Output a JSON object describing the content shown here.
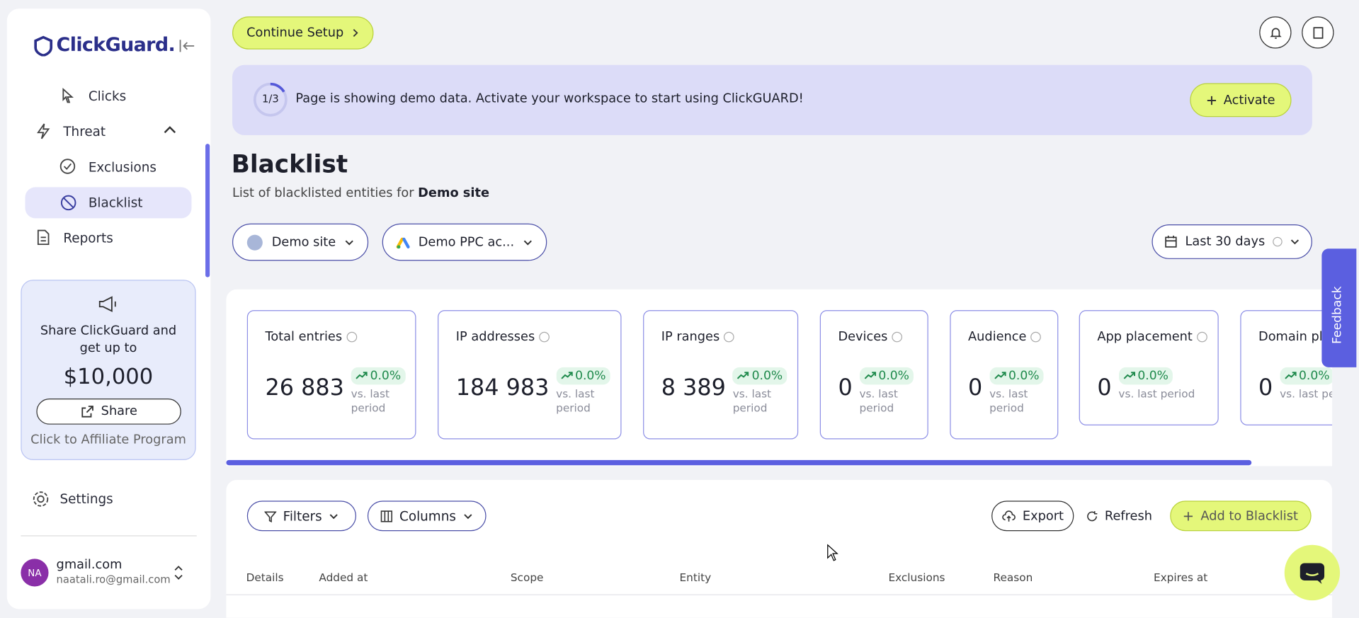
{
  "sidebar": {
    "brand": "ClickGuard.",
    "nav": [
      "Clicks",
      "Threat",
      "Exclusions",
      "Blacklist",
      "Reports"
    ],
    "promo": {
      "text": "Share ClickGuard and get up to",
      "amount": "$10,000",
      "button": "Share",
      "link": "Click to Affiliate Program"
    },
    "settings": "Settings",
    "user": {
      "initials": "NA",
      "name": "gmail.com",
      "email": "naatali.ro@gmail.com"
    }
  },
  "topbar": {
    "button": "Continue Setup"
  },
  "banner": {
    "progress": "1/3",
    "text": "Page is showing demo data. Activate your workspace to start using ClickGUARD!",
    "button": "Activate"
  },
  "page": {
    "title": "Blacklist",
    "subtitle": "List of blacklisted entities for",
    "site": "Demo site"
  },
  "filters": {
    "site": "Demo site",
    "account": "Demo PPC ac...",
    "range": "Last 30 days"
  },
  "stats": [
    {
      "label": "Total entries",
      "value": "26 883",
      "change": "0.0%",
      "note": "vs. last period"
    },
    {
      "label": "IP addresses",
      "value": "184 983",
      "change": "0.0%",
      "note": "vs. last period"
    },
    {
      "label": "IP ranges",
      "value": "8 389",
      "change": "0.0%",
      "note": "vs. last period"
    },
    {
      "label": "Devices",
      "value": "0",
      "change": "0.0%",
      "note": "vs. last period"
    },
    {
      "label": "Audience",
      "value": "0",
      "change": "0.0%",
      "note": "vs. last period"
    },
    {
      "label": "App placement",
      "value": "0",
      "change": "0.0%",
      "note": "vs. last period"
    },
    {
      "label": "Domain placement",
      "value": "0",
      "change": "0.0%",
      "note": "vs. last period"
    }
  ],
  "toolbar": {
    "filters": "Filters",
    "columns": "Columns",
    "export": "Export",
    "refresh": "Refresh",
    "add": "Add to Blacklist"
  },
  "table": {
    "headers": [
      "Details",
      "Added at",
      "Scope",
      "Entity",
      "Exclusions",
      "Reason",
      "Expires at"
    ]
  },
  "feedback": "Feedback"
}
